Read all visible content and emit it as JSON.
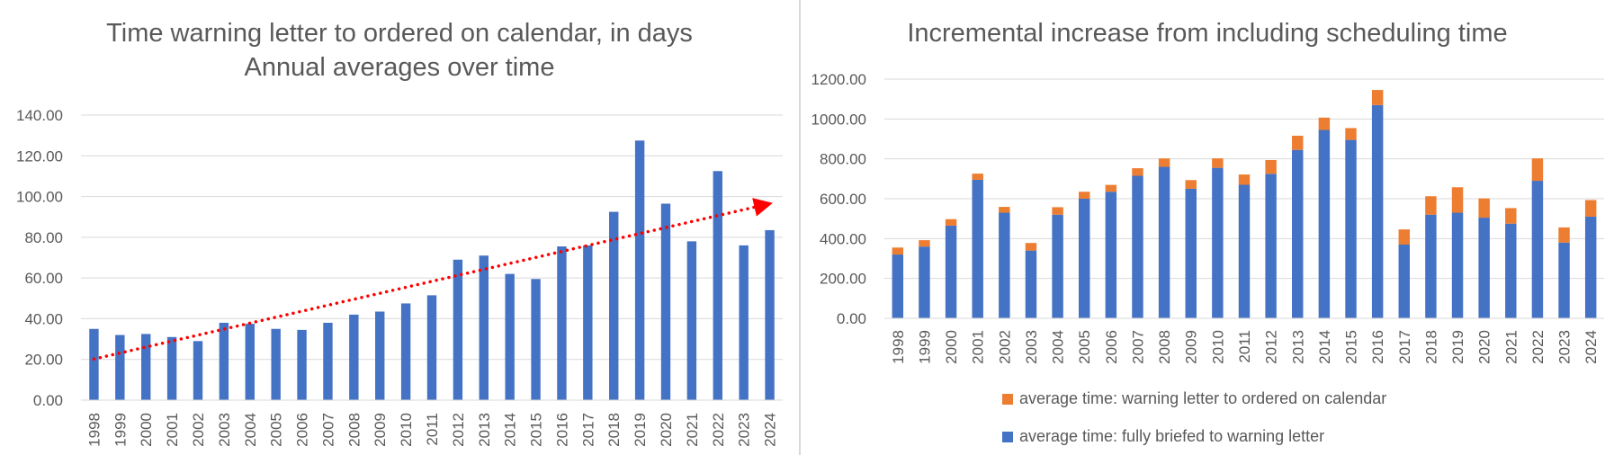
{
  "chart_data": [
    {
      "type": "bar",
      "title": "Time warning letter to ordered on calendar, in days",
      "subtitle": "Annual averages over time",
      "categories": [
        "1998",
        "1999",
        "2000",
        "2001",
        "2002",
        "2003",
        "2004",
        "2005",
        "2006",
        "2007",
        "2008",
        "2009",
        "2010",
        "2011",
        "2012",
        "2013",
        "2014",
        "2015",
        "2016",
        "2017",
        "2018",
        "2019",
        "2020",
        "2021",
        "2022",
        "2023",
        "2024"
      ],
      "series": [
        {
          "values": [
            35,
            32,
            32.5,
            31,
            29,
            38,
            37.5,
            35,
            34.5,
            38,
            42,
            43.5,
            47.5,
            51.5,
            69,
            71,
            62,
            59.5,
            75.5,
            76,
            92.5,
            127.5,
            96.5,
            78,
            112.5,
            76,
            83.5
          ],
          "color": "#4472C4"
        }
      ],
      "trendline": {
        "kind": "linear",
        "color": "#FF0000",
        "style": "dotted",
        "start_value": 20.2,
        "end_value": 96.5
      },
      "ylim": [
        0,
        140
      ],
      "yticks": [
        "0.00",
        "20.00",
        "40.00",
        "60.00",
        "80.00",
        "100.00",
        "120.00",
        "140.00"
      ],
      "grid": true,
      "legend": "none"
    },
    {
      "type": "bar",
      "stacked": true,
      "title": "Incremental increase from including scheduling time",
      "categories": [
        "1998",
        "1999",
        "2000",
        "2001",
        "2002",
        "2003",
        "2004",
        "2005",
        "2006",
        "2007",
        "2008",
        "2009",
        "2010",
        "2011",
        "2012",
        "2013",
        "2014",
        "2015",
        "2016",
        "2017",
        "2018",
        "2019",
        "2020",
        "2021",
        "2022",
        "2023",
        "2024"
      ],
      "series": [
        {
          "name": "average time: fully briefed to warning letter",
          "color": "#4472C4",
          "values": [
            320,
            360,
            465,
            695,
            530,
            340,
            520,
            600,
            635,
            715,
            760,
            650,
            755,
            670,
            725,
            845,
            945,
            895,
            1070,
            370,
            520,
            530,
            505,
            475,
            690,
            380,
            510
          ]
        },
        {
          "name": "average time: warning letter to ordered on calendar",
          "color": "#ED7D31",
          "values": [
            35,
            32,
            32.5,
            31,
            29,
            38,
            37.5,
            35,
            34.5,
            38,
            42,
            43.5,
            47.5,
            51.5,
            69,
            71,
            62,
            59.5,
            75.5,
            76,
            92.5,
            127.5,
            96.5,
            78,
            112.5,
            76,
            83.5
          ]
        }
      ],
      "ylim": [
        0,
        1200
      ],
      "yticks": [
        "0.00",
        "200.00",
        "400.00",
        "600.00",
        "800.00",
        "1000.00",
        "1200.00"
      ],
      "grid": true,
      "legend": "bottom"
    }
  ]
}
